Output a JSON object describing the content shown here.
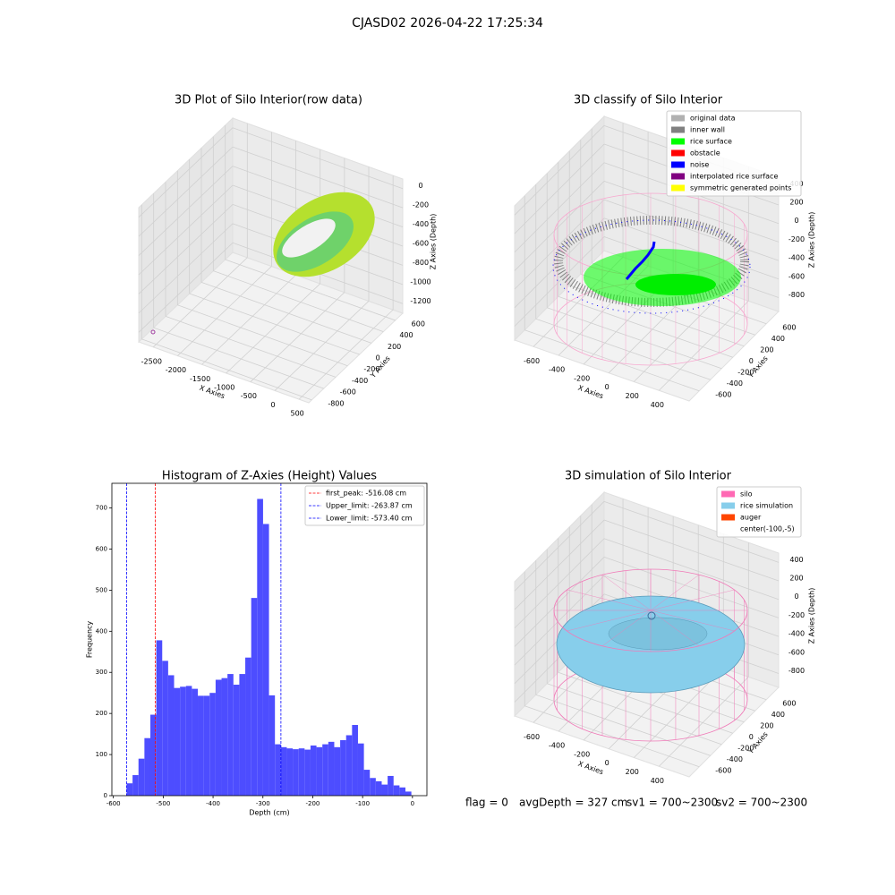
{
  "title": "CJASD02 2026-04-22 17:25:34",
  "chart_data": [
    {
      "type": "scatter3d",
      "title": "3D Plot of Silo Interior(row data)",
      "xlabel": "X Axies",
      "ylabel": "Y Axies",
      "zlabel": "Z Axies (Depth)",
      "xlim": [
        -2800,
        700
      ],
      "xticks": [
        -2500,
        -2000,
        -1500,
        -1000,
        -500,
        0,
        500
      ],
      "ylim": [
        -850,
        725
      ],
      "yticks": [
        -800,
        -600,
        -400,
        -200,
        0,
        200,
        400,
        600
      ],
      "zlim": [
        -1300,
        100
      ],
      "zticks": [
        -1200,
        -1000,
        -800,
        -600,
        -400,
        -200,
        0
      ]
    },
    {
      "type": "scatter3d",
      "title": "3D classify of Silo Interior",
      "xlabel": "X Axies",
      "ylabel": "Y Axies",
      "zlabel": "Z Axies (Depth)",
      "xlim": [
        -750,
        640
      ],
      "xticks": [
        -600,
        -400,
        -200,
        0,
        200,
        400
      ],
      "ylim": [
        -780,
        820
      ],
      "yticks": [
        -600,
        -400,
        -200,
        0,
        200,
        400,
        600
      ],
      "zlim": [
        -950,
        500
      ],
      "zticks": [
        -800,
        -600,
        -400,
        -200,
        0,
        200,
        400
      ],
      "legend": "upper right",
      "series": [
        {
          "name": "original data",
          "color": "#b0b0b0"
        },
        {
          "name": "inner wall",
          "color": "#808080"
        },
        {
          "name": "rice surface",
          "color": "#00ff00"
        },
        {
          "name": "obstacle",
          "color": "#ff0000"
        },
        {
          "name": "noise",
          "color": "#0000ff"
        },
        {
          "name": "interpolated rice surface",
          "color": "#800080"
        },
        {
          "name": "symmetric generated points",
          "color": "#ffff00"
        }
      ]
    },
    {
      "type": "histogram",
      "title": "Histogram of Z-Axies (Height) Values",
      "xlabel": "Depth (cm)",
      "ylabel": "Frequency",
      "color": "#4d4dff",
      "xlim": [
        -603,
        29
      ],
      "xticks": [
        -600,
        -500,
        -400,
        -300,
        -200,
        -100,
        0
      ],
      "ylim": [
        0,
        760
      ],
      "yticks": [
        0,
        100,
        200,
        300,
        400,
        500,
        600,
        700
      ],
      "bins": [
        -573.4,
        -561.5,
        -549.6,
        -537.7,
        -525.8,
        -513.9,
        -502.0,
        -490.1,
        -478.2,
        -466.3,
        -454.4,
        -442.5,
        -430.6,
        -418.7,
        -406.8,
        -394.9,
        -383.0,
        -371.1,
        -359.2,
        -347.3,
        -335.4,
        -323.5,
        -311.6,
        -299.7,
        -287.8,
        -275.9,
        -264.0,
        -252.1,
        -240.2,
        -228.3,
        -216.4,
        -204.5,
        -192.6,
        -180.7,
        -168.8,
        -156.9,
        -145.0,
        -133.1,
        -121.2,
        -109.3,
        -97.4,
        -85.5,
        -73.6,
        -61.7,
        -49.8,
        -37.9,
        -26.0,
        -14.1,
        -2.2
      ],
      "values": [
        30,
        50,
        90,
        140,
        197,
        378,
        328,
        293,
        262,
        265,
        267,
        260,
        243,
        243,
        250,
        282,
        286,
        296,
        270,
        296,
        336,
        481,
        722,
        661,
        244,
        125,
        118,
        115,
        113,
        115,
        112,
        122,
        118,
        125,
        131,
        118,
        135,
        147,
        172,
        127,
        63,
        43,
        35,
        27,
        48,
        25,
        20,
        10
      ],
      "legend": "upper right",
      "vlines": [
        {
          "name": "first_peak: -516.08 cm",
          "value": -516.08,
          "color": "#ff0000"
        },
        {
          "name": "Upper_limit: -263.87 cm",
          "value": -263.87,
          "color": "#0000ff"
        },
        {
          "name": "Lower_limit: -573.40 cm",
          "value": -573.4,
          "color": "#0000ff"
        }
      ]
    },
    {
      "type": "surface3d",
      "title": "3D simulation of Silo Interior",
      "xlabel": "X Axies",
      "ylabel": "Y Axies",
      "zlabel": "Z Axies (Depth)",
      "xlim": [
        -750,
        640
      ],
      "xticks": [
        -600,
        -400,
        -200,
        0,
        200,
        400
      ],
      "ylim": [
        -780,
        820
      ],
      "yticks": [
        -600,
        -400,
        -200,
        0,
        200,
        400,
        600
      ],
      "zlim": [
        -950,
        500
      ],
      "zticks": [
        -800,
        -600,
        -400,
        -200,
        0,
        200,
        400
      ],
      "legend": "upper right",
      "series": [
        {
          "name": "silo",
          "color": "#ff69b4"
        },
        {
          "name": "rice simulation",
          "color": "#87ceeb"
        },
        {
          "name": "auger",
          "color": "#ff4500"
        },
        {
          "name": "center(-100,-5)"
        }
      ]
    }
  ],
  "footer": [
    "flag = 0",
    "avgDepth = 327 cm",
    "sv1 = 700~2300",
    "sv2 = 700~2300"
  ]
}
